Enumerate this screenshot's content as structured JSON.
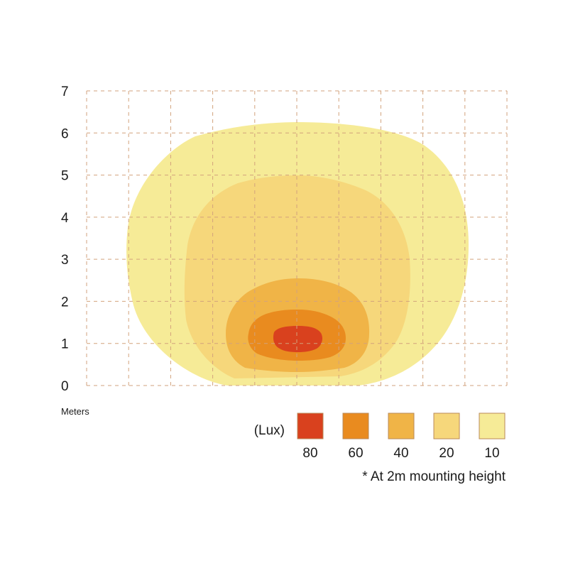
{
  "chart_data": {
    "type": "heatmap",
    "title": "",
    "xlabel": "",
    "ylabel": "Meters",
    "ylim": [
      0,
      7
    ],
    "yticks": [
      "0",
      "1",
      "2",
      "3",
      "4",
      "5",
      "6",
      "7"
    ],
    "x_grid_columns": 10,
    "grid": true,
    "grid_style": "dashed",
    "grid_color": "#d2a27c",
    "legend": {
      "title": "(Lux)",
      "placement": "bottom-right",
      "entries": [
        {
          "label": "80",
          "color": "#d9411e"
        },
        {
          "label": "60",
          "color": "#e98b1f"
        },
        {
          "label": "40",
          "color": "#f0b447"
        },
        {
          "label": "20",
          "color": "#f6d77b"
        },
        {
          "label": "10",
          "color": "#f6eb97"
        }
      ]
    },
    "isolux_zones": [
      {
        "lux": 10,
        "color": "#f6eb97",
        "y_min": 0,
        "y_max": 6.2,
        "x_half_width_m": 4.1
      },
      {
        "lux": 20,
        "color": "#f6d77b",
        "y_min": 0.3,
        "y_max": 5.0,
        "x_half_width_m": 2.7
      },
      {
        "lux": 40,
        "color": "#f0b447",
        "y_min": 0.4,
        "y_max": 2.5,
        "x_half_width_m": 1.6
      },
      {
        "lux": 60,
        "color": "#e98b1f",
        "y_min": 0.6,
        "y_max": 1.8,
        "x_half_width_m": 1.2
      },
      {
        "lux": 80,
        "color": "#d9411e",
        "y_min": 0.85,
        "y_max": 1.45,
        "x_half_width_m": 0.6
      }
    ],
    "footnote": "* At 2m mounting height"
  }
}
